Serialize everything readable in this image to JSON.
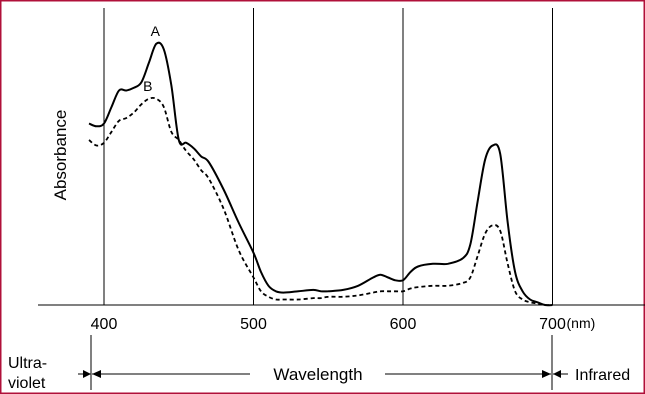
{
  "chart_data": {
    "type": "line",
    "title": "",
    "xlabel": "",
    "ylabel": "Absorbance",
    "x_unit": "(nm)",
    "xlim": [
      390,
      700
    ],
    "ylim": [
      0,
      1
    ],
    "grid": "vertical lines at 400, 500, 600, 700",
    "x_ticks": [
      "400",
      "500",
      "600",
      "700"
    ],
    "series": [
      {
        "name": "A",
        "style": "solid",
        "x": [
          390,
          395,
          400,
          405,
          410,
          415,
          420,
          425,
          430,
          435,
          440,
          445,
          450,
          455,
          460,
          465,
          470,
          480,
          490,
          500,
          505,
          510,
          515,
          520,
          530,
          540,
          545,
          550,
          560,
          570,
          580,
          585,
          590,
          595,
          600,
          605,
          610,
          620,
          630,
          640,
          645,
          650,
          655,
          660,
          665,
          670,
          675,
          680,
          685,
          690,
          695,
          700
        ],
        "values": [
          0.66,
          0.65,
          0.66,
          0.72,
          0.78,
          0.78,
          0.79,
          0.81,
          0.88,
          0.95,
          0.93,
          0.8,
          0.6,
          0.59,
          0.57,
          0.54,
          0.52,
          0.42,
          0.3,
          0.19,
          0.12,
          0.07,
          0.05,
          0.045,
          0.05,
          0.055,
          0.05,
          0.05,
          0.055,
          0.07,
          0.1,
          0.11,
          0.1,
          0.09,
          0.09,
          0.12,
          0.14,
          0.15,
          0.15,
          0.17,
          0.22,
          0.38,
          0.53,
          0.58,
          0.55,
          0.3,
          0.12,
          0.05,
          0.02,
          0.01,
          0.0,
          0.0
        ]
      },
      {
        "name": "B",
        "style": "dashed",
        "x": [
          390,
          395,
          400,
          405,
          410,
          415,
          420,
          425,
          430,
          435,
          440,
          445,
          450,
          455,
          460,
          465,
          470,
          480,
          490,
          500,
          505,
          510,
          515,
          520,
          530,
          540,
          545,
          550,
          560,
          570,
          580,
          585,
          590,
          595,
          600,
          605,
          610,
          620,
          630,
          640,
          645,
          650,
          655,
          660,
          665,
          670,
          675,
          680,
          685,
          690,
          695,
          700
        ],
        "values": [
          0.6,
          0.58,
          0.59,
          0.63,
          0.67,
          0.68,
          0.7,
          0.73,
          0.75,
          0.75,
          0.72,
          0.63,
          0.6,
          0.56,
          0.53,
          0.49,
          0.46,
          0.35,
          0.2,
          0.1,
          0.05,
          0.03,
          0.02,
          0.02,
          0.02,
          0.025,
          0.025,
          0.03,
          0.03,
          0.035,
          0.045,
          0.05,
          0.05,
          0.05,
          0.05,
          0.06,
          0.065,
          0.07,
          0.07,
          0.08,
          0.1,
          0.18,
          0.26,
          0.29,
          0.27,
          0.15,
          0.05,
          0.02,
          0.01,
          0.005,
          0.0,
          0.0
        ]
      }
    ]
  },
  "spectrum_bar": {
    "left_label": "Ultra-\nviolet",
    "left_label_line1": "Ultra-",
    "left_label_line2": "violet",
    "middle_label": "Wavelength",
    "right_label": "Infrared"
  },
  "colors": {
    "border": "#b0103a",
    "line": "#000000"
  }
}
